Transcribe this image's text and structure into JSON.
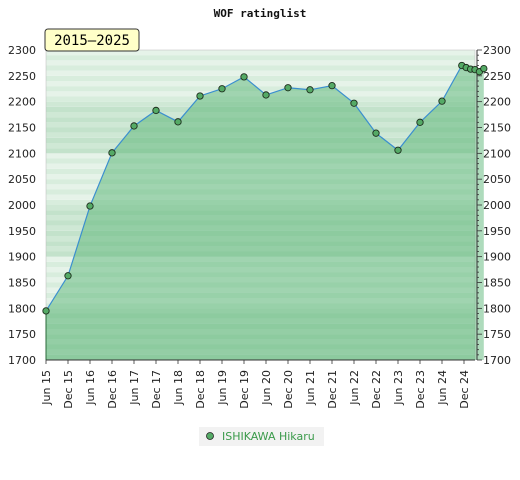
{
  "chart_data": {
    "type": "area",
    "title": "WOF ratinglist",
    "period_label": "2015–2025",
    "xlabel": "",
    "ylabel": "",
    "ylim": [
      1700,
      2300
    ],
    "y_ticks": [
      1700,
      1750,
      1800,
      1850,
      1900,
      1950,
      2000,
      2050,
      2100,
      2150,
      2200,
      2250,
      2300
    ],
    "x_range": [
      0,
      39
    ],
    "x_ticks": [
      {
        "x": 0,
        "label": "Jun 15"
      },
      {
        "x": 2,
        "label": "Dec 15"
      },
      {
        "x": 4,
        "label": "Jun 16"
      },
      {
        "x": 6,
        "label": "Dec 16"
      },
      {
        "x": 8,
        "label": "Jun 17"
      },
      {
        "x": 10,
        "label": "Dec 17"
      },
      {
        "x": 12,
        "label": "Jun 18"
      },
      {
        "x": 14,
        "label": "Dec 18"
      },
      {
        "x": 16,
        "label": "Jun 19"
      },
      {
        "x": 18,
        "label": "Dec 19"
      },
      {
        "x": 20,
        "label": "Jun 20"
      },
      {
        "x": 22,
        "label": "Dec 20"
      },
      {
        "x": 24,
        "label": "Jun 21"
      },
      {
        "x": 26,
        "label": "Dec 21"
      },
      {
        "x": 28,
        "label": "Jun 22"
      },
      {
        "x": 30,
        "label": "Dec 22"
      },
      {
        "x": 32,
        "label": "Jun 23"
      },
      {
        "x": 34,
        "label": "Dec 23"
      },
      {
        "x": 36,
        "label": "Jun 24"
      },
      {
        "x": 38,
        "label": "Dec 24"
      }
    ],
    "grid": true,
    "legend_position": "bottom-center",
    "series": [
      {
        "name": "ISHIKAWA Hikaru",
        "color": "#3b8fcf",
        "fill_color": "#4caf6a",
        "marker_color": "#55aa66",
        "points": [
          {
            "x": 0,
            "y": 1795
          },
          {
            "x": 2,
            "y": 1863
          },
          {
            "x": 4,
            "y": 1998
          },
          {
            "x": 6,
            "y": 2101
          },
          {
            "x": 8,
            "y": 2153
          },
          {
            "x": 10,
            "y": 2183
          },
          {
            "x": 12,
            "y": 2161
          },
          {
            "x": 14,
            "y": 2211
          },
          {
            "x": 16,
            "y": 2225
          },
          {
            "x": 18,
            "y": 2248
          },
          {
            "x": 20,
            "y": 2213
          },
          {
            "x": 22,
            "y": 2227
          },
          {
            "x": 24,
            "y": 2223
          },
          {
            "x": 26,
            "y": 2231
          },
          {
            "x": 28,
            "y": 2197
          },
          {
            "x": 30,
            "y": 2139
          },
          {
            "x": 32,
            "y": 2106
          },
          {
            "x": 34,
            "y": 2160
          },
          {
            "x": 36,
            "y": 2201
          },
          {
            "x": 37.8,
            "y": 2270
          },
          {
            "x": 38.2,
            "y": 2266
          },
          {
            "x": 38.6,
            "y": 2263
          },
          {
            "x": 39.0,
            "y": 2262
          },
          {
            "x": 39.4,
            "y": 2258
          },
          {
            "x": 39.8,
            "y": 2264
          }
        ]
      }
    ]
  }
}
